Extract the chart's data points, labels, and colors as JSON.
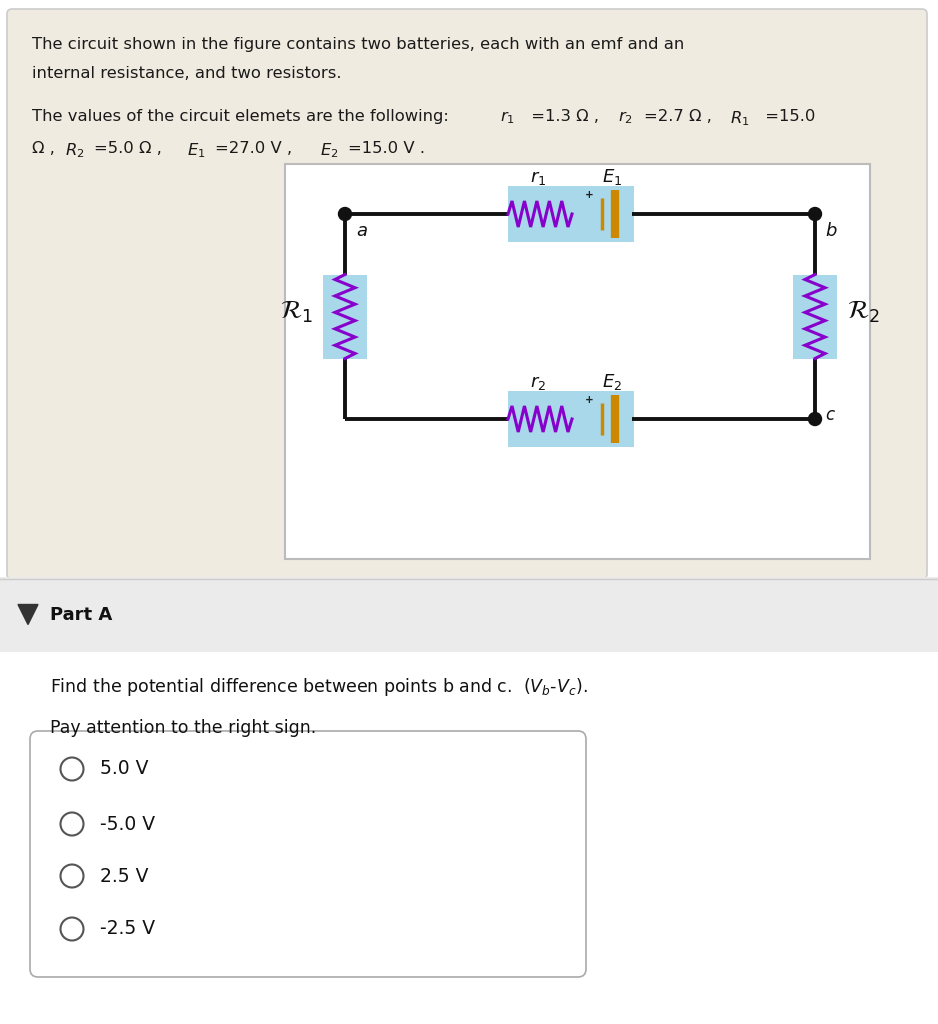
{
  "bg_top": "#f0ebe0",
  "bg_bottom": "#ffffff",
  "bg_part_a": "#eeeeee",
  "white": "#ffffff",
  "text_color": "#1a1a1a",
  "resistor_color": "#8800cc",
  "resistor_bg": "#a8d8ea",
  "battery_color": "#cc8800",
  "wire_color": "#111111",
  "node_color": "#111111",
  "choices": [
    "5.0 V",
    "-5.0 V",
    "2.5 V",
    "-2.5 V"
  ],
  "circuit_border": "#bbbbbb",
  "panel_border": "#cccccc"
}
